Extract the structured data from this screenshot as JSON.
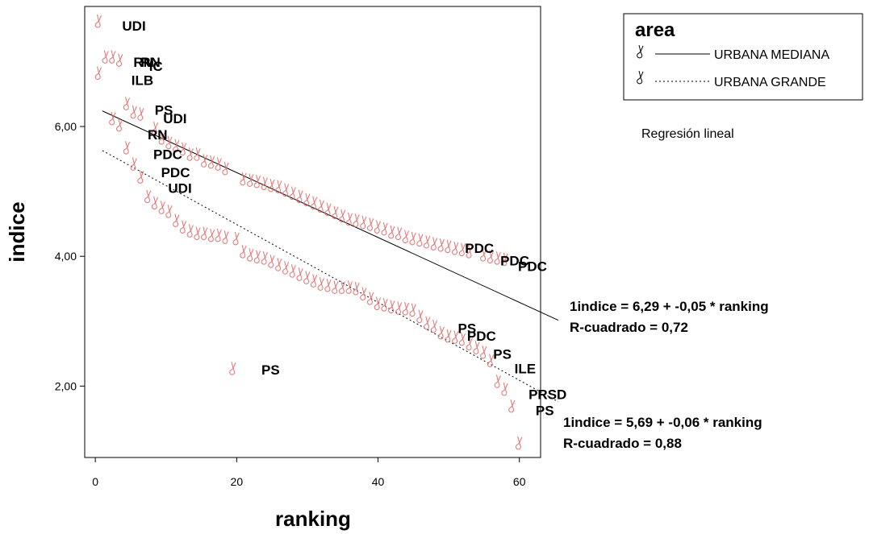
{
  "chart_data": {
    "type": "scatter",
    "xlabel": "ranking",
    "ylabel": "indice",
    "xlim": [
      -1.5,
      63
    ],
    "ylim": [
      0.9,
      7.85
    ],
    "x_ticks": [
      {
        "value": 0,
        "label": "0"
      },
      {
        "value": 20,
        "label": "20"
      },
      {
        "value": 40,
        "label": "40"
      },
      {
        "value": 60,
        "label": "60"
      }
    ],
    "y_ticks": [
      {
        "value": 2,
        "label": "2,00"
      },
      {
        "value": 4,
        "label": "4,00"
      },
      {
        "value": 6,
        "label": "6,00"
      }
    ],
    "grid": false,
    "marker_color": "#e87070",
    "legend": {
      "title": "area",
      "position": "top-right",
      "entries": [
        {
          "label": "URBANA MEDIANA",
          "line": "solid"
        },
        {
          "label": "URBANA GRANDE",
          "line": "dotted"
        }
      ]
    },
    "note": "Regresión lineal",
    "series": [
      {
        "name": "URBANA MEDIANA",
        "line_style": "solid",
        "regression": {
          "intercept": 6.29,
          "slope": -0.05
        },
        "equation": "1indice = 6,29 + -0,05 * ranking",
        "r_squared": "R-cuadrado = 0,72",
        "points": [
          [
            0.5,
            7.65
          ],
          [
            1.5,
            7.1
          ],
          [
            2.5,
            7.1
          ],
          [
            3.5,
            7.05
          ],
          [
            4.5,
            6.38
          ],
          [
            5.5,
            6.25
          ],
          [
            6.5,
            6.22
          ],
          [
            8.5,
            6.0
          ],
          [
            9.5,
            5.85
          ],
          [
            10.5,
            5.78
          ],
          [
            11.5,
            5.73
          ],
          [
            12.5,
            5.68
          ],
          [
            13.5,
            5.6
          ],
          [
            14.5,
            5.6
          ],
          [
            15.5,
            5.5
          ],
          [
            16.5,
            5.48
          ],
          [
            17.5,
            5.45
          ],
          [
            18.5,
            5.38
          ],
          [
            21,
            5.22
          ],
          [
            22,
            5.2
          ],
          [
            23,
            5.18
          ],
          [
            24,
            5.15
          ],
          [
            25,
            5.12
          ],
          [
            26,
            5.1
          ],
          [
            27,
            5.05
          ],
          [
            28,
            5.0
          ],
          [
            29,
            4.95
          ],
          [
            30,
            4.9
          ],
          [
            31,
            4.85
          ],
          [
            32,
            4.8
          ],
          [
            33,
            4.75
          ],
          [
            34,
            4.7
          ],
          [
            35,
            4.65
          ],
          [
            36,
            4.6
          ],
          [
            37,
            4.58
          ],
          [
            38,
            4.55
          ],
          [
            39,
            4.52
          ],
          [
            40,
            4.48
          ],
          [
            41,
            4.45
          ],
          [
            42,
            4.4
          ],
          [
            43,
            4.38
          ],
          [
            44,
            4.33
          ],
          [
            45,
            4.3
          ],
          [
            46,
            4.28
          ],
          [
            47,
            4.25
          ],
          [
            48,
            4.22
          ],
          [
            49,
            4.2
          ],
          [
            50,
            4.18
          ],
          [
            51,
            4.15
          ],
          [
            52,
            4.13
          ],
          [
            53,
            4.1
          ],
          [
            55,
            4.05
          ],
          [
            56,
            4.02
          ],
          [
            57,
            4.0
          ],
          [
            58,
            3.98
          ]
        ],
        "labels": [
          {
            "text": "UDI",
            "x": 3.8,
            "y": 7.48
          },
          {
            "text": "RN",
            "x": 5.4,
            "y": 6.92
          },
          {
            "text": "RN",
            "x": 6.4,
            "y": 6.92
          },
          {
            "text": "IC",
            "x": 7.6,
            "y": 6.86
          },
          {
            "text": "ILB",
            "x": 5.1,
            "y": 6.64
          },
          {
            "text": "PS",
            "x": 8.4,
            "y": 6.18
          },
          {
            "text": "UDI",
            "x": 9.6,
            "y": 6.05
          },
          {
            "text": "RN",
            "x": 7.4,
            "y": 5.8
          },
          {
            "text": "PDC",
            "x": 8.2,
            "y": 5.5
          },
          {
            "text": "PDC",
            "x": 9.3,
            "y": 5.22
          },
          {
            "text": "UDI",
            "x": 10.3,
            "y": 4.98
          },
          {
            "text": "PDC",
            "x": 52.3,
            "y": 4.05
          },
          {
            "text": "PDC",
            "x": 57.3,
            "y": 3.86
          },
          {
            "text": "PDC",
            "x": 59.8,
            "y": 3.77
          }
        ]
      },
      {
        "name": "URBANA GRANDE",
        "line_style": "dotted",
        "regression": {
          "intercept": 5.69,
          "slope": -0.06
        },
        "equation": "1indice = 5,69 + -0,06 * ranking",
        "r_squared": "R-cuadrado = 0,88",
        "points": [
          [
            0.5,
            6.85
          ],
          [
            2.5,
            6.15
          ],
          [
            3.5,
            6.05
          ],
          [
            4.5,
            5.7
          ],
          [
            5.5,
            5.45
          ],
          [
            6.5,
            5.25
          ],
          [
            7.5,
            4.95
          ],
          [
            8.5,
            4.85
          ],
          [
            9.5,
            4.78
          ],
          [
            10.5,
            4.72
          ],
          [
            11.5,
            4.58
          ],
          [
            12.5,
            4.48
          ],
          [
            13.5,
            4.42
          ],
          [
            14.5,
            4.38
          ],
          [
            15.5,
            4.38
          ],
          [
            16.5,
            4.35
          ],
          [
            17.5,
            4.35
          ],
          [
            18.5,
            4.32
          ],
          [
            19.5,
            2.3
          ],
          [
            20,
            4.3
          ],
          [
            21,
            4.1
          ],
          [
            22,
            4.05
          ],
          [
            23,
            4.02
          ],
          [
            24,
            4.0
          ],
          [
            25,
            3.95
          ],
          [
            26,
            3.9
          ],
          [
            27,
            3.85
          ],
          [
            28,
            3.8
          ],
          [
            29,
            3.75
          ],
          [
            30,
            3.7
          ],
          [
            31,
            3.65
          ],
          [
            32,
            3.6
          ],
          [
            33,
            3.58
          ],
          [
            34,
            3.55
          ],
          [
            35,
            3.55
          ],
          [
            36,
            3.55
          ],
          [
            37,
            3.53
          ],
          [
            38,
            3.45
          ],
          [
            39,
            3.38
          ],
          [
            40,
            3.3
          ],
          [
            41,
            3.28
          ],
          [
            42,
            3.25
          ],
          [
            43,
            3.23
          ],
          [
            44,
            3.22
          ],
          [
            45,
            3.2
          ],
          [
            46,
            3.1
          ],
          [
            47,
            3.0
          ],
          [
            48,
            2.95
          ],
          [
            49,
            2.85
          ],
          [
            50,
            2.8
          ],
          [
            51,
            2.78
          ],
          [
            52,
            2.75
          ],
          [
            53,
            2.68
          ],
          [
            54,
            2.62
          ],
          [
            55,
            2.55
          ],
          [
            56,
            2.42
          ],
          [
            57,
            2.1
          ],
          [
            58,
            1.98
          ],
          [
            59,
            1.72
          ],
          [
            60,
            1.15
          ]
        ],
        "labels": [
          {
            "text": "PS",
            "x": 23.5,
            "y": 2.18
          },
          {
            "text": "PS",
            "x": 51.3,
            "y": 2.82
          },
          {
            "text": "PDC",
            "x": 52.6,
            "y": 2.7
          },
          {
            "text": "PS",
            "x": 56.3,
            "y": 2.42
          },
          {
            "text": "ILE",
            "x": 59.3,
            "y": 2.2
          },
          {
            "text": "PRSD",
            "x": 61.3,
            "y": 1.8
          },
          {
            "text": "PS",
            "x": 62.3,
            "y": 1.55
          }
        ]
      }
    ]
  }
}
